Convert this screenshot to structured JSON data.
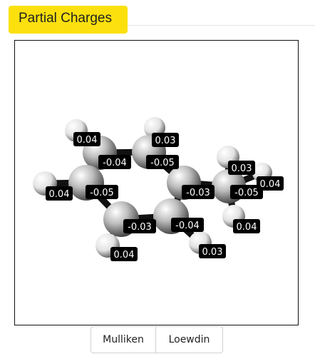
{
  "panel": {
    "title": "Partial Charges"
  },
  "buttons": {
    "mulliken": "Mulliken",
    "loewdin": "Loewdin"
  },
  "molecule": {
    "atoms": [
      {
        "el": "H",
        "charge": "0.04"
      },
      {
        "el": "H",
        "charge": "0.03"
      },
      {
        "el": "C",
        "charge": "-0.04"
      },
      {
        "el": "C",
        "charge": "-0.05"
      },
      {
        "el": "H",
        "charge": "0.04"
      },
      {
        "el": "C",
        "charge": "-0.05"
      },
      {
        "el": "C",
        "charge": "-0.03"
      },
      {
        "el": "H",
        "charge": "0.03"
      },
      {
        "el": "C",
        "charge": "-0.05"
      },
      {
        "el": "H",
        "charge": "0.04"
      },
      {
        "el": "C",
        "charge": "-0.03"
      },
      {
        "el": "C",
        "charge": "-0.04"
      },
      {
        "el": "H",
        "charge": "0.04"
      },
      {
        "el": "H",
        "charge": "0.04"
      },
      {
        "el": "H",
        "charge": "0.03"
      }
    ]
  }
}
